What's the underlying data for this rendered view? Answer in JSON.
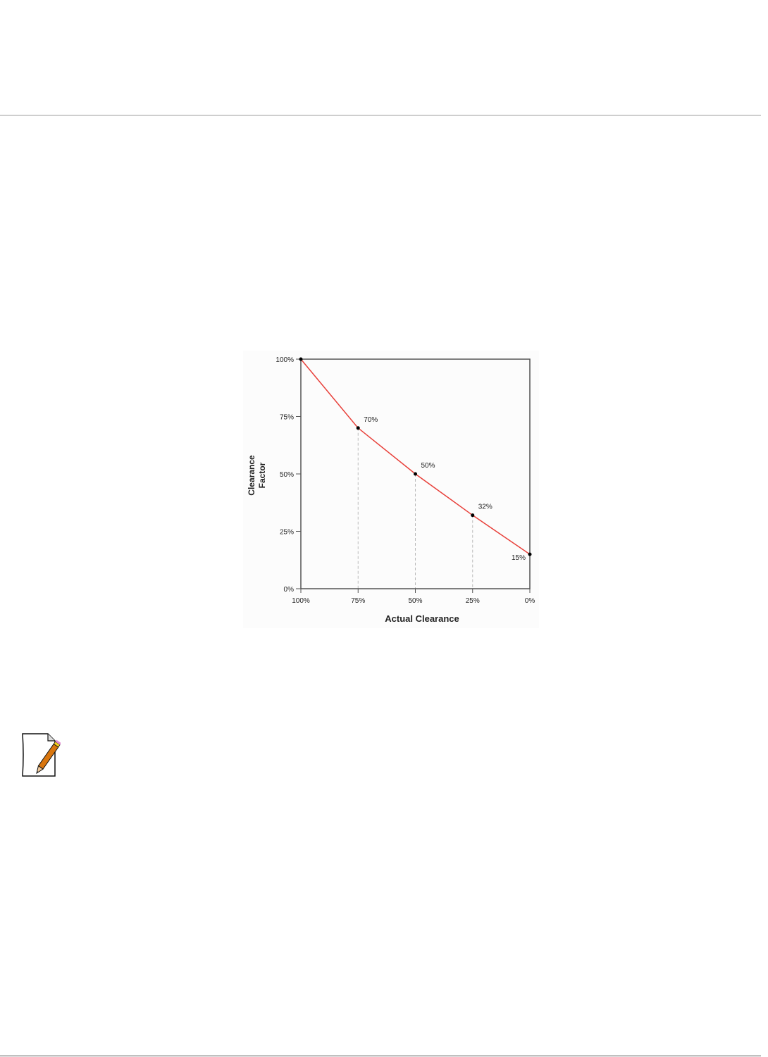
{
  "chart_data": {
    "type": "line",
    "title": "",
    "xlabel": "Actual Clearance",
    "ylabel": "Clearance Factor",
    "x": [
      100,
      75,
      50,
      25,
      0
    ],
    "values": [
      100,
      70,
      50,
      32,
      15
    ],
    "point_labels": [
      "",
      "70%",
      "50%",
      "32%",
      "15%"
    ],
    "xticks": [
      "100%",
      "75%",
      "50%",
      "25%",
      "0%"
    ],
    "yticks": [
      "0%",
      "25%",
      "50%",
      "75%",
      "100%"
    ],
    "xlim": [
      100,
      0
    ],
    "ylim": [
      0,
      100
    ],
    "x_reversed": true,
    "grid": false,
    "drop_lines": true,
    "line_color": "#e8403a",
    "marker_color": "#000000"
  },
  "note": {
    "icon": "note-pencil-icon"
  }
}
